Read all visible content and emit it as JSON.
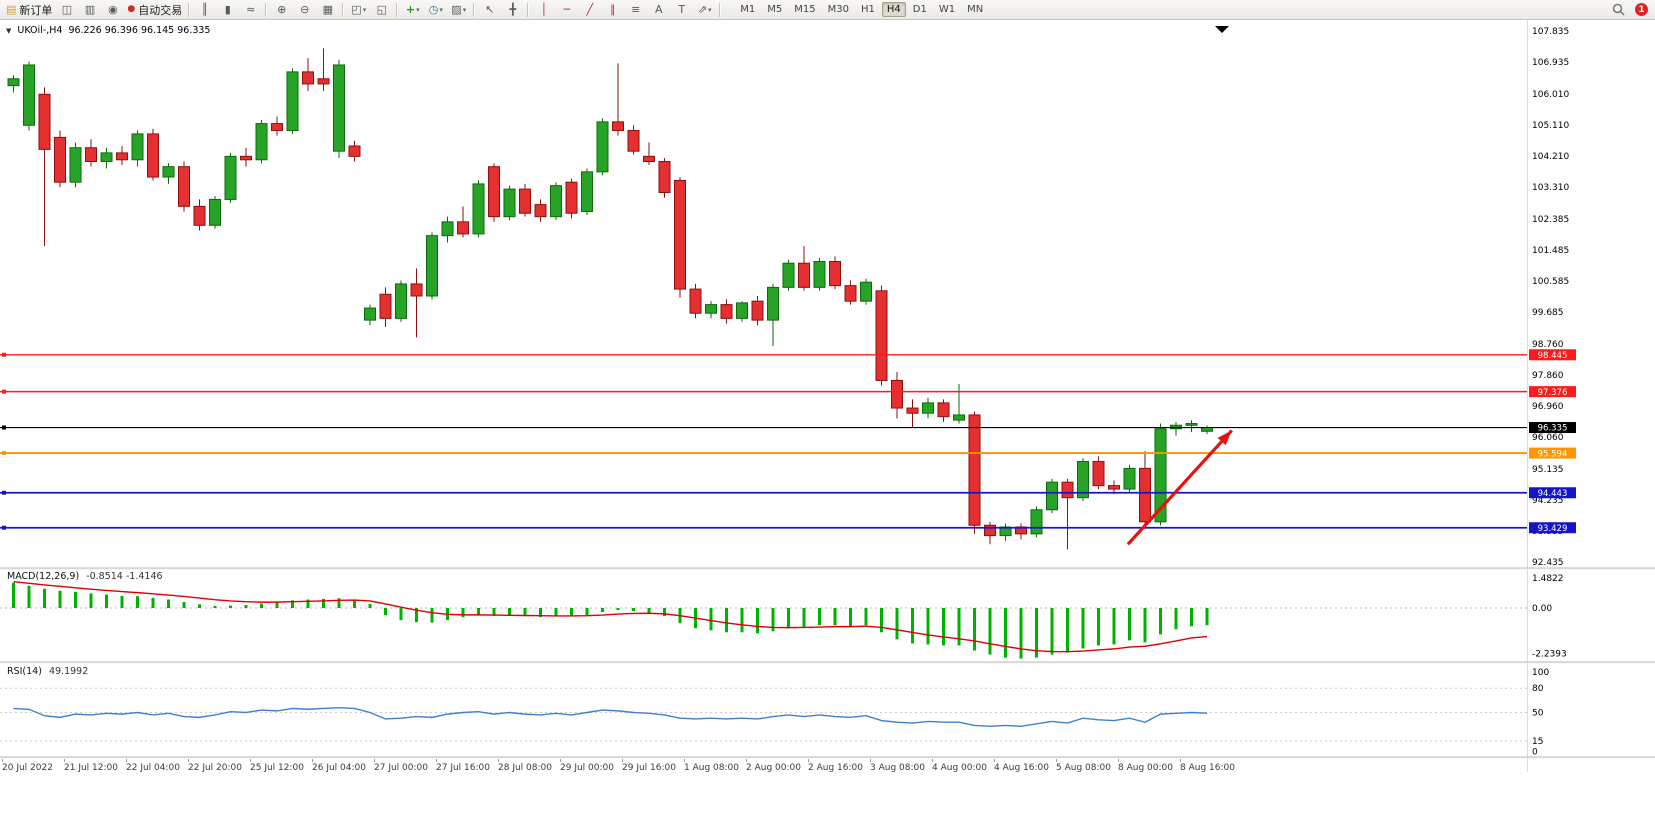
{
  "toolbar": {
    "caret_glyph": "▾",
    "notification_count": "1",
    "timeframes": [
      "M1",
      "M5",
      "M15",
      "M30",
      "H1",
      "H4",
      "D1",
      "W1",
      "MN"
    ],
    "active_timeframe": "H4",
    "items": [
      {
        "type": "button",
        "name": "new-order-button",
        "glyph": "▤",
        "label": "新订单"
      },
      {
        "type": "icon",
        "name": "chart-profiles-icon",
        "glyph": "◫"
      },
      {
        "type": "icon",
        "name": "market-watch-icon",
        "glyph": "▥"
      },
      {
        "type": "icon",
        "name": "data-window-icon",
        "glyph": "◉"
      },
      {
        "type": "button",
        "name": "auto-trading-button",
        "glyph": "●",
        "label": "自动交易"
      },
      {
        "type": "sep"
      },
      {
        "type": "icon",
        "name": "bar-chart-icon",
        "glyph": "║"
      },
      {
        "type": "icon",
        "name": "candlestick-chart-icon",
        "glyph": "▮"
      },
      {
        "type": "icon",
        "name": "line-chart-icon",
        "glyph": "≈"
      },
      {
        "type": "sep"
      },
      {
        "type": "icon",
        "name": "zoom-in-icon",
        "glyph": "⊕"
      },
      {
        "type": "icon",
        "name": "zoom-out-icon",
        "glyph": "⊖"
      },
      {
        "type": "icon",
        "name": "tile-windows-icon",
        "glyph": "▦"
      },
      {
        "type": "sep"
      },
      {
        "type": "icon",
        "name": "new-chart-icon",
        "glyph": "◰",
        "caret": true
      },
      {
        "type": "icon",
        "name": "chart-shift-icon",
        "glyph": "◱"
      },
      {
        "type": "sep"
      },
      {
        "type": "icon",
        "name": "indicators-icon",
        "glyph": "+",
        "caret": true
      },
      {
        "type": "icon",
        "name": "periods-icon",
        "glyph": "◷",
        "caret": true
      },
      {
        "type": "icon",
        "name": "templates-icon",
        "glyph": "▨",
        "caret": true
      },
      {
        "type": "sep"
      },
      {
        "type": "icon",
        "name": "cursor-icon",
        "glyph": "↖"
      },
      {
        "type": "icon",
        "name": "crosshair-icon",
        "glyph": "╋"
      },
      {
        "type": "sep"
      },
      {
        "type": "icon",
        "name": "vertical-line-icon",
        "glyph": "│"
      },
      {
        "type": "icon",
        "name": "horizontal-line-icon",
        "glyph": "─"
      },
      {
        "type": "icon",
        "name": "trendline-icon",
        "glyph": "╱"
      },
      {
        "type": "icon",
        "name": "equidistant-channel-icon",
        "glyph": "∥"
      },
      {
        "type": "icon",
        "name": "fibonacci-icon",
        "glyph": "≡"
      },
      {
        "type": "icon",
        "name": "text-icon",
        "glyph": "A"
      },
      {
        "type": "icon",
        "name": "text-label-icon",
        "glyph": "T"
      },
      {
        "type": "icon",
        "name": "arrows-icon",
        "glyph": "⇗",
        "caret": true
      },
      {
        "type": "sep"
      }
    ]
  },
  "chart": {
    "dropdown_glyph": "▼",
    "symbol": "UKOil-,H4",
    "ohlc": "96.226 96.396 96.145 96.335"
  },
  "chart_data": {
    "type": "candlestick",
    "symbol": "UKOil-",
    "timeframe": "H4",
    "title": "UKOil-,H4 96.226 96.396 96.145 96.335",
    "price_axis": [
      "107.835",
      "106.935",
      "106.010",
      "105.110",
      "104.210",
      "103.310",
      "102.385",
      "101.485",
      "100.585",
      "99.685",
      "98.760",
      "97.860",
      "96.960",
      "96.060",
      "95.135",
      "94.235",
      "93.335",
      "92.435"
    ],
    "time_axis": [
      "20 Jul 2022",
      "21 Jul 12:00",
      "22 Jul 04:00",
      "22 Jul 20:00",
      "25 Jul 12:00",
      "26 Jul 04:00",
      "27 Jul 00:00",
      "27 Jul 16:00",
      "28 Jul 08:00",
      "29 Jul 00:00",
      "29 Jul 16:00",
      "1 Aug 08:00",
      "2 Aug 00:00",
      "2 Aug 16:00",
      "3 Aug 08:00",
      "4 Aug 00:00",
      "4 Aug 16:00",
      "5 Aug 08:00",
      "8 Aug 00:00",
      "8 Aug 16:00"
    ],
    "up_color": "#27a427",
    "down_color": "#e43030",
    "candles": [
      [
        106.25,
        106.55,
        106.05,
        106.45
      ],
      [
        105.1,
        106.95,
        104.95,
        106.85
      ],
      [
        106.0,
        106.2,
        101.6,
        104.4
      ],
      [
        104.75,
        104.95,
        103.3,
        103.45
      ],
      [
        103.45,
        104.6,
        103.3,
        104.45
      ],
      [
        104.45,
        104.7,
        103.9,
        104.05
      ],
      [
        104.05,
        104.45,
        103.85,
        104.3
      ],
      [
        104.3,
        104.5,
        103.95,
        104.1
      ],
      [
        104.1,
        104.95,
        103.9,
        104.85
      ],
      [
        104.85,
        105.0,
        103.5,
        103.6
      ],
      [
        103.6,
        104.0,
        103.4,
        103.9
      ],
      [
        103.9,
        104.05,
        102.6,
        102.75
      ],
      [
        102.75,
        102.95,
        102.05,
        102.2
      ],
      [
        102.2,
        103.05,
        102.1,
        102.95
      ],
      [
        102.95,
        104.3,
        102.85,
        104.2
      ],
      [
        104.2,
        104.45,
        103.9,
        104.1
      ],
      [
        104.1,
        105.25,
        104.0,
        105.15
      ],
      [
        105.15,
        105.35,
        104.8,
        104.95
      ],
      [
        104.95,
        106.75,
        104.85,
        106.65
      ],
      [
        106.65,
        107.05,
        106.1,
        106.3
      ],
      [
        106.45,
        107.33,
        106.1,
        106.3
      ],
      [
        104.35,
        107.0,
        104.15,
        106.85
      ],
      [
        104.5,
        104.65,
        104.05,
        104.2
      ],
      [
        99.45,
        99.9,
        99.3,
        99.8
      ],
      [
        100.2,
        100.4,
        99.25,
        99.5
      ],
      [
        99.5,
        100.6,
        99.4,
        100.5
      ],
      [
        100.5,
        100.95,
        98.95,
        100.15
      ],
      [
        100.15,
        102.0,
        100.05,
        101.9
      ],
      [
        101.9,
        102.45,
        101.7,
        102.3
      ],
      [
        102.3,
        102.75,
        101.85,
        101.95
      ],
      [
        101.95,
        103.5,
        101.85,
        103.4
      ],
      [
        103.9,
        104.0,
        102.3,
        102.45
      ],
      [
        102.45,
        103.35,
        102.35,
        103.25
      ],
      [
        103.25,
        103.4,
        102.45,
        102.55
      ],
      [
        102.8,
        102.95,
        102.3,
        102.45
      ],
      [
        102.45,
        103.45,
        102.35,
        103.35
      ],
      [
        103.45,
        103.55,
        102.4,
        102.55
      ],
      [
        102.6,
        103.85,
        102.5,
        103.75
      ],
      [
        103.75,
        105.3,
        103.65,
        105.2
      ],
      [
        105.2,
        106.9,
        104.8,
        104.95
      ],
      [
        104.95,
        105.1,
        104.25,
        104.35
      ],
      [
        104.2,
        104.6,
        103.95,
        104.05
      ],
      [
        104.05,
        104.15,
        103.0,
        103.15
      ],
      [
        103.5,
        103.6,
        100.1,
        100.35
      ],
      [
        100.35,
        100.5,
        99.5,
        99.65
      ],
      [
        99.65,
        100.0,
        99.5,
        99.9
      ],
      [
        99.9,
        100.05,
        99.35,
        99.5
      ],
      [
        99.5,
        100.0,
        99.4,
        99.95
      ],
      [
        100.0,
        100.15,
        99.3,
        99.45
      ],
      [
        99.45,
        100.5,
        98.7,
        100.4
      ],
      [
        100.4,
        101.2,
        100.3,
        101.1
      ],
      [
        101.1,
        101.6,
        100.3,
        100.4
      ],
      [
        100.4,
        101.25,
        100.3,
        101.15
      ],
      [
        101.15,
        101.3,
        100.35,
        100.45
      ],
      [
        100.45,
        100.6,
        99.9,
        100.0
      ],
      [
        100.0,
        100.65,
        99.9,
        100.55
      ],
      [
        100.3,
        100.45,
        97.55,
        97.7
      ],
      [
        97.7,
        97.95,
        96.6,
        96.9
      ],
      [
        96.9,
        97.15,
        96.35,
        96.75
      ],
      [
        96.75,
        97.2,
        96.6,
        97.05
      ],
      [
        97.05,
        97.15,
        96.5,
        96.65
      ],
      [
        96.55,
        97.6,
        96.45,
        96.7
      ],
      [
        96.7,
        96.8,
        93.25,
        93.5
      ],
      [
        93.5,
        93.6,
        92.95,
        93.2
      ],
      [
        93.2,
        93.55,
        93.05,
        93.45
      ],
      [
        93.45,
        93.55,
        93.1,
        93.25
      ],
      [
        93.25,
        94.05,
        93.15,
        93.95
      ],
      [
        93.95,
        94.85,
        93.85,
        94.75
      ],
      [
        94.75,
        94.85,
        92.8,
        94.3
      ],
      [
        94.3,
        95.45,
        94.2,
        95.35
      ],
      [
        95.35,
        95.5,
        94.55,
        94.65
      ],
      [
        94.65,
        94.8,
        94.4,
        94.55
      ],
      [
        94.55,
        95.25,
        94.45,
        95.15
      ],
      [
        95.15,
        95.65,
        93.4,
        93.6
      ],
      [
        93.6,
        96.45,
        93.5,
        96.3
      ],
      [
        96.3,
        96.5,
        96.1,
        96.4
      ],
      [
        96.4,
        96.55,
        96.2,
        96.45
      ],
      [
        96.226,
        96.396,
        96.145,
        96.335
      ]
    ],
    "hlines": [
      {
        "value": "98.445",
        "color": "#ff1a1a",
        "width": 1.4
      },
      {
        "value": "97.376",
        "color": "#ff1a1a",
        "width": 1.4
      },
      {
        "value": "96.335",
        "color": "#000000",
        "width": 1.1
      },
      {
        "value": "95.594",
        "color": "#ff9500",
        "width": 1.8
      },
      {
        "value": "94.443",
        "color": "#1515c8",
        "width": 1.8
      },
      {
        "value": "93.429",
        "color": "#1515c8",
        "width": 1.8
      }
    ],
    "arrow": {
      "from": {
        "bar": 71.9,
        "price": 92.95
      },
      "to": {
        "bar": 78.6,
        "price": 96.25
      },
      "color": "#e81010"
    },
    "macd": {
      "label": "MACD(12,26,9)",
      "values_text": "-0.8514 -1.4146",
      "axis": [
        "1.4822",
        "0.00",
        "-2.2393"
      ],
      "histogram_color": "#00b200",
      "signal_color": "#e00000",
      "histogram": [
        1.25,
        1.1,
        0.95,
        0.85,
        0.8,
        0.72,
        0.66,
        0.6,
        0.58,
        0.5,
        0.42,
        0.3,
        0.18,
        0.1,
        0.12,
        0.15,
        0.22,
        0.28,
        0.38,
        0.42,
        0.45,
        0.48,
        0.42,
        0.2,
        -0.35,
        -0.6,
        -0.7,
        -0.72,
        -0.6,
        -0.45,
        -0.35,
        -0.4,
        -0.38,
        -0.4,
        -0.45,
        -0.4,
        -0.42,
        -0.35,
        -0.2,
        -0.1,
        -0.15,
        -0.25,
        -0.4,
        -0.75,
        -1.0,
        -1.1,
        -1.2,
        -1.2,
        -1.25,
        -1.15,
        -1.0,
        -0.95,
        -0.85,
        -0.85,
        -0.9,
        -0.85,
        -1.2,
        -1.55,
        -1.75,
        -1.8,
        -1.85,
        -1.85,
        -2.1,
        -2.3,
        -2.45,
        -2.5,
        -2.45,
        -2.3,
        -2.2,
        -2.0,
        -1.85,
        -1.8,
        -1.6,
        -1.7,
        -1.3,
        -1.05,
        -0.9,
        -0.85
      ],
      "signal": [
        1.3,
        1.22,
        1.14,
        1.07,
        1.0,
        0.93,
        0.87,
        0.81,
        0.76,
        0.7,
        0.64,
        0.57,
        0.49,
        0.41,
        0.35,
        0.31,
        0.29,
        0.29,
        0.31,
        0.33,
        0.35,
        0.38,
        0.39,
        0.35,
        0.2,
        0.04,
        -0.11,
        -0.23,
        -0.31,
        -0.34,
        -0.34,
        -0.35,
        -0.36,
        -0.37,
        -0.38,
        -0.39,
        -0.39,
        -0.38,
        -0.35,
        -0.3,
        -0.27,
        -0.26,
        -0.29,
        -0.38,
        -0.5,
        -0.62,
        -0.74,
        -0.83,
        -0.91,
        -0.96,
        -0.97,
        -0.96,
        -0.94,
        -0.92,
        -0.92,
        -0.9,
        -0.96,
        -1.08,
        -1.21,
        -1.33,
        -1.43,
        -1.52,
        -1.63,
        -1.77,
        -1.9,
        -2.02,
        -2.11,
        -2.15,
        -2.16,
        -2.13,
        -2.07,
        -2.02,
        -1.93,
        -1.89,
        -1.77,
        -1.63,
        -1.48,
        -1.41
      ]
    },
    "rsi": {
      "label": "RSI(14)",
      "value_text": "49.1992",
      "axis": [
        "100",
        "80",
        "50",
        "15",
        "0"
      ],
      "levels": [
        80,
        50,
        15
      ],
      "line_color": "#3f7fd0",
      "points": [
        55,
        54,
        46,
        44,
        48,
        47,
        49,
        48,
        50,
        47,
        49,
        45,
        44,
        47,
        51,
        50,
        53,
        52,
        55,
        54,
        55,
        56,
        55,
        50,
        42,
        43,
        45,
        44,
        48,
        50,
        51,
        48,
        50,
        48,
        47,
        49,
        47,
        50,
        53,
        52,
        50,
        49,
        47,
        43,
        42,
        43,
        42,
        43,
        42,
        45,
        47,
        45,
        47,
        45,
        44,
        46,
        40,
        38,
        37,
        39,
        38,
        38,
        34,
        33,
        34,
        33,
        36,
        39,
        37,
        43,
        41,
        40,
        43,
        38,
        48,
        49,
        50,
        49.2
      ]
    }
  }
}
